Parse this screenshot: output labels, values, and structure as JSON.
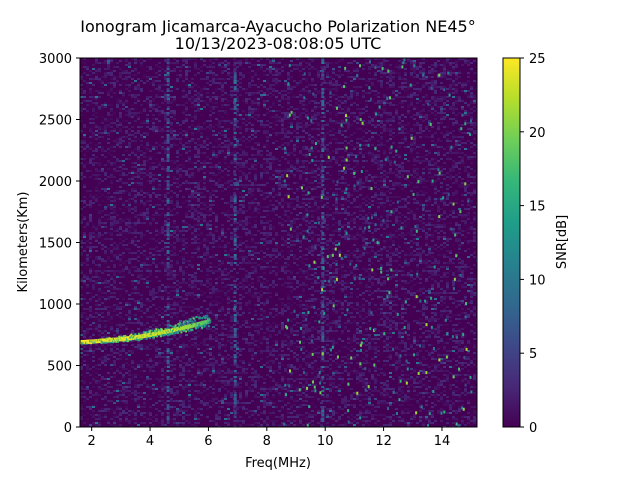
{
  "chart_data": {
    "type": "heatmap",
    "title_line1": "Ionogram Jicamarca-Ayacucho Polarization NE45°",
    "title_line2": "10/13/2023-08:08:05 UTC",
    "xlabel": "Freq(MHz)",
    "ylabel": "Kilometers(Km)",
    "colorbar_label": "SNR[dB]",
    "colormap": "viridis",
    "xlim": [
      1.6,
      15.2
    ],
    "ylim": [
      0,
      3000
    ],
    "clim": [
      0,
      25
    ],
    "x_ticks": [
      2,
      4,
      6,
      8,
      10,
      12,
      14
    ],
    "x_tick_labels": [
      "2",
      "4",
      "6",
      "8",
      "10",
      "12",
      "14"
    ],
    "y_ticks": [
      0,
      500,
      1000,
      1500,
      2000,
      2500,
      3000
    ],
    "y_tick_labels": [
      "0",
      "500",
      "1000",
      "1500",
      "2000",
      "2500",
      "3000"
    ],
    "colorbar_ticks": [
      0,
      5,
      10,
      15,
      20,
      25
    ],
    "colorbar_tick_labels": [
      "0",
      "5",
      "10",
      "15",
      "20",
      "25"
    ],
    "trace": {
      "description": "strong echo trace",
      "freq_mhz": [
        1.6,
        2.0,
        2.5,
        3.0,
        3.5,
        4.0,
        4.5,
        5.0,
        5.5,
        6.0
      ],
      "range_km": [
        690,
        695,
        705,
        715,
        730,
        750,
        775,
        800,
        830,
        860
      ],
      "snr_db": [
        25,
        25,
        24,
        24,
        24,
        23,
        23,
        22,
        20,
        18
      ]
    },
    "vertical_streaks_mhz": [
      4.6,
      6.9,
      9.9
    ],
    "background_snr_db": [
      0,
      3
    ]
  }
}
